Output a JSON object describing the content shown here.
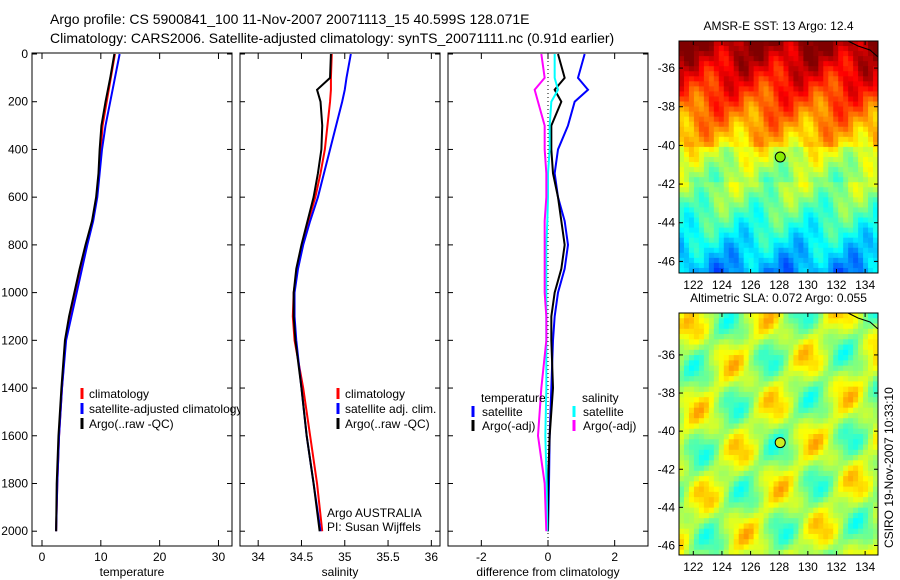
{
  "chart_data": [
    {
      "type": "line",
      "title_line1": "Argo profile: CS 5900841_100 11-Nov-2007 20071113_15 40.599S 128.071E",
      "title_line2": "Climatology: CARS2006. Satellite-adjusted climatology: synTS_20071111.nc (0.91d earlier)",
      "xlabel": "temperature",
      "xlim": [
        -1.7,
        32.3
      ],
      "xticks": [
        0,
        10,
        20,
        30
      ],
      "ylim": [
        0,
        2062
      ],
      "yticks": [
        0,
        200,
        400,
        600,
        800,
        1000,
        1200,
        1400,
        1600,
        1800,
        2000
      ],
      "depth": [
        0,
        100,
        200,
        300,
        400,
        500,
        600,
        700,
        800,
        900,
        1000,
        1100,
        1200,
        1400,
        1600,
        1800,
        2000
      ],
      "series": [
        {
          "name": "climatology",
          "color": "#ff0000",
          "values": [
            12.4,
            11.7,
            11.0,
            10.3,
            10.0,
            9.7,
            9.3,
            8.6,
            7.6,
            6.7,
            5.8,
            4.9,
            4.0,
            3.4,
            2.9,
            2.6,
            2.4
          ]
        },
        {
          "name": "satellite-adjusted climatology",
          "color": "#0000ff",
          "values": [
            13.2,
            12.4,
            11.6,
            10.8,
            10.2,
            9.8,
            9.4,
            8.7,
            7.7,
            6.8,
            5.9,
            5.0,
            4.1,
            3.4,
            2.9,
            2.6,
            2.4
          ]
        },
        {
          "name": "Argo(..raw -QC)",
          "color": "#000000",
          "values": [
            12.3,
            11.6,
            10.8,
            10.1,
            9.8,
            9.6,
            9.2,
            8.5,
            7.4,
            6.4,
            5.5,
            4.6,
            3.9,
            3.3,
            2.8,
            2.5,
            2.4
          ]
        }
      ]
    },
    {
      "type": "line",
      "xlabel": "salinity",
      "xlim": [
        33.79,
        36.1
      ],
      "xticks": [
        34,
        34.5,
        35,
        35.5,
        36
      ],
      "ylim": [
        0,
        2062
      ],
      "depth": [
        0,
        100,
        150,
        200,
        300,
        400,
        500,
        600,
        700,
        800,
        900,
        1000,
        1100,
        1200,
        1400,
        1600,
        1800,
        2000
      ],
      "series": [
        {
          "name": "climatology",
          "color": "#ff0000",
          "values": [
            34.85,
            34.84,
            34.84,
            34.83,
            34.8,
            34.77,
            34.72,
            34.66,
            34.58,
            34.51,
            34.45,
            34.41,
            34.4,
            34.42,
            34.52,
            34.6,
            34.68,
            34.74
          ]
        },
        {
          "name": "satellite adj. clim.",
          "color": "#0000ff",
          "values": [
            35.07,
            35.02,
            35.0,
            34.97,
            34.9,
            34.83,
            34.76,
            34.69,
            34.6,
            34.52,
            34.46,
            34.42,
            34.42,
            34.44,
            34.5,
            34.56,
            34.64,
            34.72
          ]
        },
        {
          "name": "Argo(..raw -QC)",
          "color": "#000000",
          "values": [
            34.84,
            34.83,
            34.68,
            34.72,
            34.74,
            34.73,
            34.69,
            34.64,
            34.57,
            34.5,
            34.44,
            34.41,
            34.41,
            34.43,
            34.5,
            34.56,
            34.64,
            34.71
          ]
        }
      ],
      "annotations": [
        "Argo AUSTRALIA",
        "PI: Susan Wijffels"
      ]
    },
    {
      "type": "line",
      "xlabel": "difference from climatology",
      "xlim": [
        -3,
        3
      ],
      "xticks": [
        -2,
        0,
        2
      ],
      "ylim": [
        0,
        2062
      ],
      "depth": [
        0,
        100,
        150,
        200,
        300,
        400,
        500,
        600,
        700,
        800,
        900,
        1000,
        1100,
        1200,
        1400,
        1600,
        1800,
        2000
      ],
      "legend_headers": [
        "temperature",
        "salinity"
      ],
      "series": [
        {
          "name": "satellite",
          "group": "temperature",
          "color": "#0000ff",
          "values": [
            1.1,
            0.9,
            1.2,
            0.8,
            0.6,
            0.3,
            0.2,
            0.3,
            0.5,
            0.6,
            0.5,
            0.3,
            0.2,
            0.15,
            0.1,
            0.05,
            0.03,
            0.0
          ]
        },
        {
          "name": "Argo(-adj)",
          "group": "temperature",
          "color": "#000000",
          "values": [
            0.3,
            0.5,
            0.2,
            0.4,
            0.1,
            0.1,
            0.15,
            0.3,
            0.4,
            0.5,
            0.4,
            0.2,
            0.1,
            0.1,
            0.15,
            0.05,
            0.0,
            0.0
          ]
        },
        {
          "name": "satellite",
          "group": "salinity",
          "color": "#00ffff",
          "values": [
            0.2,
            0.2,
            0.3,
            0.1,
            0.05,
            0.05,
            0.0,
            0.0,
            -0.02,
            -0.05,
            -0.05,
            -0.05,
            -0.05,
            -0.05,
            -0.05,
            -0.08,
            -0.04,
            -0.02
          ]
        },
        {
          "name": "Argo(-adj)",
          "group": "salinity",
          "color": "#ff00ff",
          "values": [
            -0.2,
            -0.1,
            -0.4,
            -0.3,
            -0.1,
            -0.1,
            -0.05,
            -0.05,
            -0.1,
            -0.1,
            -0.1,
            -0.1,
            -0.05,
            -0.05,
            -0.2,
            -0.3,
            -0.1,
            -0.05
          ]
        }
      ]
    },
    {
      "type": "heatmap",
      "title": "AMSR-E SST: 13 Argo: 12.4",
      "xlim": [
        121.0,
        134.9
      ],
      "ylim": [
        -46.6,
        -34.6
      ],
      "xticks": [
        122,
        124,
        126,
        128,
        130,
        132,
        134
      ],
      "yticks": [
        -36,
        -38,
        -40,
        -42,
        -44,
        -46
      ],
      "marker": {
        "lon": 128.07,
        "lat": -40.6
      }
    },
    {
      "type": "heatmap",
      "title": "Altimetric SLA: 0.072 Argo: 0.055",
      "xlim": [
        121.0,
        134.9
      ],
      "ylim": [
        -46.5,
        -33.8
      ],
      "xticks": [
        122,
        124,
        126,
        128,
        130,
        132,
        134
      ],
      "yticks": [
        -36,
        -38,
        -40,
        -42,
        -44,
        -46
      ],
      "marker": {
        "lon": 128.07,
        "lat": -40.6
      }
    }
  ],
  "footer": "CSIRO 19-Nov-2007 10:33:10"
}
